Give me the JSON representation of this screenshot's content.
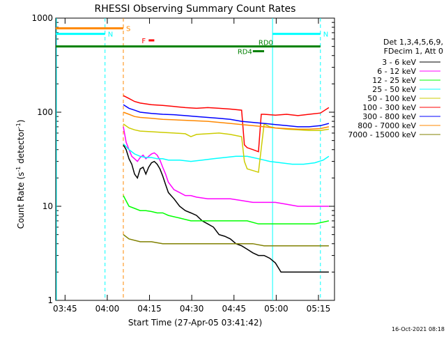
{
  "chart_data": {
    "type": "line",
    "title": "RHESSI Observing Summary Count Rates",
    "xlabel": "Start Time (27-Apr-05 03:41:42)",
    "ylabel_main": "Count Rate (s",
    "ylabel_sup1": "-1",
    "ylabel_mid": " detector",
    "ylabel_sup2": "-1",
    "ylabel_end": ")",
    "footer": "16-Oct-2021 08:18",
    "x_unit": "minutes after 03:41:42",
    "xlim": [
      0,
      99
    ],
    "ylim": [
      1,
      1000
    ],
    "y_scale": "log",
    "x_ticks": [
      {
        "label": "03:45",
        "value": 3.3
      },
      {
        "label": "04:00",
        "value": 18.3
      },
      {
        "label": "04:15",
        "value": 33.3
      },
      {
        "label": "04:30",
        "value": 48.3
      },
      {
        "label": "04:45",
        "value": 63.3
      },
      {
        "label": "05:00",
        "value": 78.3
      },
      {
        "label": "05:15",
        "value": 93.3
      }
    ],
    "y_ticks": [
      {
        "label": "1",
        "value": 1
      },
      {
        "label": "10",
        "value": 10
      },
      {
        "label": "100",
        "value": 100
      },
      {
        "label": "1000",
        "value": 1000
      }
    ],
    "legend_header": [
      "Det 1,3,4,5,6,9,",
      "FDecim 1, Att 0"
    ],
    "legend_position": "right",
    "series": [
      {
        "name": "3 - 6 keV",
        "color": "#000000",
        "x": [
          24,
          25,
          26,
          27,
          28,
          29,
          30,
          31,
          32,
          33,
          34,
          35,
          36,
          37,
          38,
          39,
          40,
          42,
          44,
          46,
          48,
          50,
          52,
          54,
          56,
          58,
          60,
          62,
          64,
          66,
          68,
          70,
          72,
          74,
          76,
          78,
          80,
          82,
          84,
          86,
          88,
          90,
          92,
          94,
          95,
          96,
          97
        ],
        "y": [
          45,
          40,
          32,
          28,
          22,
          20,
          25,
          26,
          22,
          26,
          29,
          30,
          28,
          25,
          21,
          17,
          14,
          12,
          10,
          9,
          8.5,
          8,
          7,
          6.5,
          6,
          5,
          4.8,
          4.5,
          4,
          3.8,
          3.5,
          3.2,
          3,
          3,
          2.8,
          2.5,
          2,
          2,
          2,
          2,
          2,
          2,
          2,
          2,
          2,
          2,
          2
        ]
      },
      {
        "name": "6 - 12 keV",
        "color": "#ff00ff",
        "x": [
          24,
          25,
          26,
          27,
          28,
          29,
          30,
          31,
          32,
          33,
          34,
          35,
          36,
          37,
          38,
          39,
          40,
          42,
          44,
          46,
          48,
          50,
          54,
          58,
          62,
          66,
          70,
          74,
          78,
          82,
          86,
          90,
          94,
          97
        ],
        "y": [
          70,
          48,
          40,
          34,
          32,
          30,
          33,
          35,
          32,
          34,
          36,
          37,
          35,
          31,
          26,
          22,
          18,
          15,
          14,
          13,
          13,
          12.5,
          12,
          12,
          12,
          11.5,
          11,
          11,
          11,
          10.5,
          10,
          10,
          10,
          10
        ]
      },
      {
        "name": "12 - 25 keV",
        "color": "#00ff00",
        "x": [
          24,
          26,
          28,
          30,
          32,
          34,
          36,
          38,
          40,
          44,
          48,
          52,
          56,
          60,
          64,
          68,
          72,
          76,
          80,
          84,
          88,
          92,
          97
        ],
        "y": [
          13,
          10,
          9.5,
          9,
          9,
          8.8,
          8.5,
          8.5,
          8,
          7.5,
          7,
          7,
          7,
          7,
          7,
          7,
          6.5,
          6.5,
          6.5,
          6.5,
          6.5,
          6.5,
          7
        ]
      },
      {
        "name": "25 - 50 keV",
        "color": "#00ffff",
        "x": [
          24,
          26,
          28,
          30,
          32,
          34,
          36,
          38,
          40,
          44,
          48,
          52,
          56,
          60,
          64,
          68,
          70,
          72,
          76,
          80,
          84,
          88,
          92,
          95,
          97
        ],
        "y": [
          46,
          40,
          36,
          34,
          33,
          33,
          32,
          32,
          31,
          31,
          30,
          31,
          32,
          33,
          34,
          34,
          33,
          32,
          30,
          29,
          28,
          28,
          29,
          31,
          34
        ]
      },
      {
        "name": "50 - 100 keV",
        "color": "#cccc00",
        "x": [
          24,
          26,
          28,
          30,
          34,
          38,
          42,
          46,
          48,
          50,
          54,
          58,
          62,
          66,
          67,
          68,
          70,
          72,
          74,
          76,
          78,
          82,
          86,
          90,
          94,
          97
        ],
        "y": [
          75,
          68,
          65,
          63,
          62,
          61,
          60,
          59,
          55,
          58,
          59,
          60,
          58,
          55,
          30,
          25,
          24,
          23,
          75,
          70,
          68,
          66,
          65,
          64,
          64,
          66
        ]
      },
      {
        "name": "100 - 300 keV",
        "color": "#ff0000",
        "x": [
          24,
          26,
          28,
          30,
          34,
          38,
          42,
          46,
          50,
          54,
          58,
          62,
          66,
          67,
          68,
          70,
          72,
          73,
          74,
          78,
          82,
          86,
          90,
          94,
          97
        ],
        "y": [
          150,
          140,
          130,
          125,
          120,
          118,
          115,
          112,
          110,
          112,
          110,
          108,
          105,
          45,
          42,
          40,
          38,
          95,
          95,
          93,
          95,
          92,
          95,
          98,
          112
        ]
      },
      {
        "name": "300 - 800 keV",
        "color": "#0000ff",
        "x": [
          24,
          26,
          28,
          30,
          34,
          38,
          42,
          46,
          50,
          54,
          58,
          62,
          66,
          70,
          74,
          78,
          82,
          86,
          90,
          94,
          97
        ],
        "y": [
          120,
          110,
          105,
          100,
          97,
          95,
          94,
          92,
          90,
          88,
          86,
          84,
          80,
          78,
          76,
          74,
          72,
          70,
          70,
          72,
          76
        ]
      },
      {
        "name": "800 - 7000 keV",
        "color": "#ff8800",
        "x": [
          24,
          26,
          28,
          30,
          34,
          38,
          42,
          46,
          50,
          54,
          58,
          62,
          66,
          70,
          74,
          78,
          82,
          86,
          90,
          94,
          97
        ],
        "y": [
          100,
          95,
          90,
          88,
          86,
          84,
          83,
          82,
          81,
          80,
          78,
          76,
          74,
          72,
          70,
          68,
          67,
          66,
          66,
          67,
          70
        ]
      },
      {
        "name": "7000 - 15000 keV",
        "color": "#808000",
        "x": [
          24,
          26,
          30,
          34,
          38,
          42,
          46,
          50,
          54,
          58,
          62,
          66,
          70,
          74,
          78,
          82,
          86,
          90,
          94,
          97
        ],
        "y": [
          5,
          4.5,
          4.2,
          4.2,
          4,
          4,
          4,
          4,
          4,
          4,
          4,
          4,
          4,
          3.8,
          3.8,
          3.8,
          3.8,
          3.8,
          3.8,
          3.8
        ]
      }
    ],
    "annotations": [
      {
        "label": "S",
        "color": "#ff8800",
        "x_start": 0,
        "x_end": 24,
        "y": 780
      },
      {
        "label": "N",
        "color": "#00ffff",
        "x_start": 0,
        "x_end": 17.5,
        "y": 680
      },
      {
        "label": "N",
        "color": "#00ffff",
        "x_start": 77,
        "x_end": 94,
        "y": 680
      },
      {
        "label": "F",
        "color": "#ff0000",
        "x_start": 33,
        "x_end": 35,
        "y": 580
      },
      {
        "label": "RD0",
        "color": "#008000",
        "x_start": 0,
        "x_end": 94,
        "y": 500
      },
      {
        "label": "RD4",
        "color": "#008000",
        "x_start": 70,
        "x_end": 74,
        "y": 445
      }
    ],
    "vlines": [
      {
        "x": 17.5,
        "color": "#00ffff",
        "dashed": true
      },
      {
        "x": 24,
        "color": "#ff8800",
        "dashed": true
      },
      {
        "x": 77,
        "color": "#00ffff",
        "dashed": false
      },
      {
        "x": 94,
        "color": "#00ffff",
        "dashed": true
      }
    ]
  }
}
